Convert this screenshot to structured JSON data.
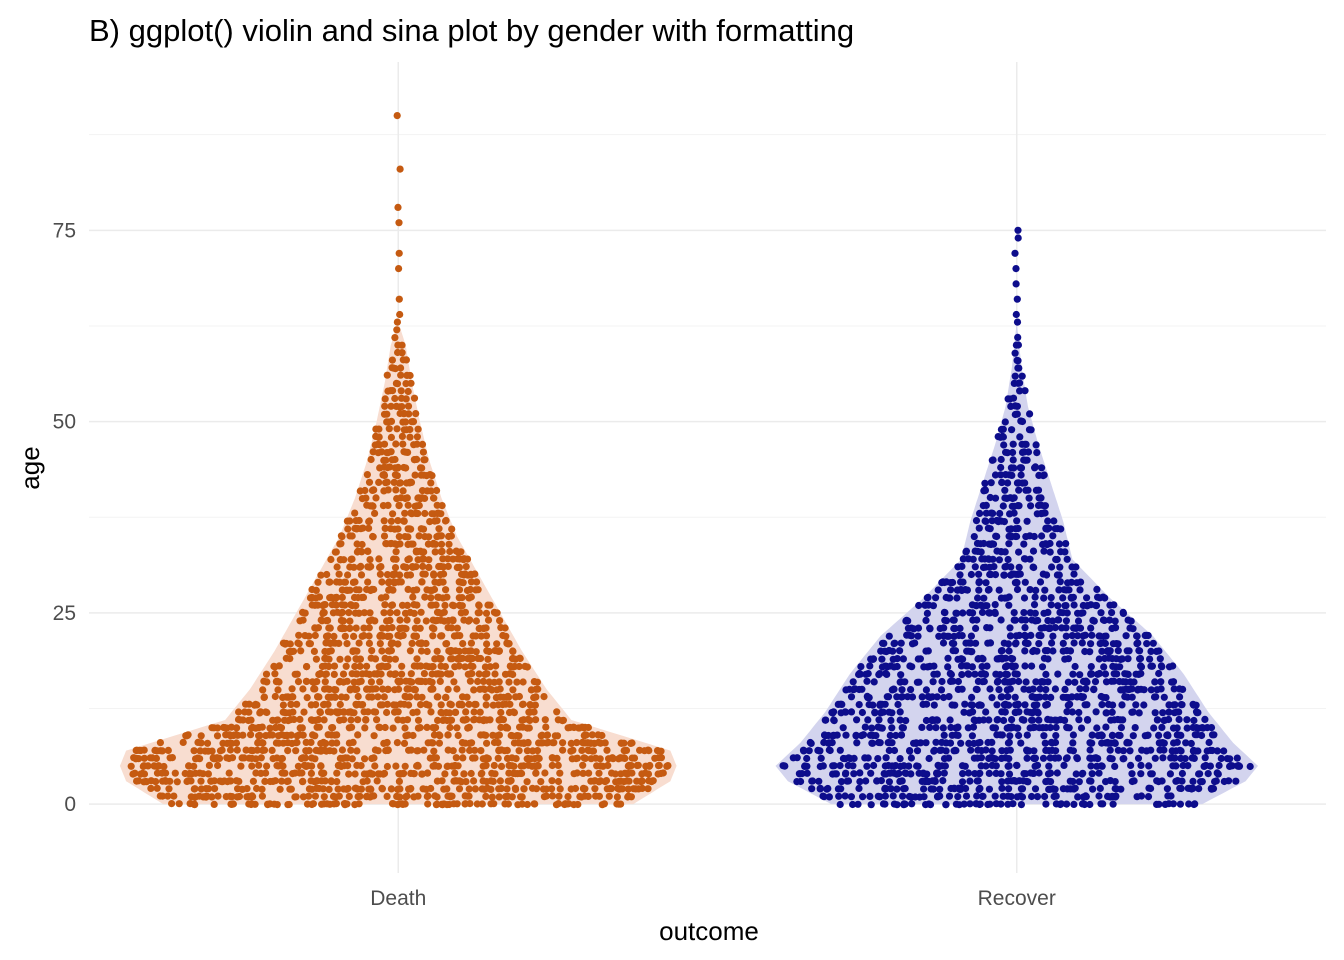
{
  "chart_data": {
    "type": "violin",
    "subtype": "violin with sina points",
    "title": "B) ggplot() violin and sina plot by gender with formatting",
    "xlabel": "outcome",
    "ylabel": "age",
    "categories": [
      "Death",
      "Recover"
    ],
    "ylim": [
      -9,
      97
    ],
    "yticks": [
      0,
      25,
      50,
      75
    ],
    "grid": true,
    "legend": "none",
    "series": [
      {
        "name": "Death",
        "point_color": "#c55a11",
        "violin_fill": "#f8ddd0",
        "n_points": 2100,
        "max_age": 90,
        "outliers": [
          90,
          83,
          78,
          76,
          72,
          70,
          66,
          64,
          63,
          62
        ],
        "density_profile": [
          {
            "age": 0,
            "width": 0.38
          },
          {
            "age": 3,
            "width": 0.44
          },
          {
            "age": 5,
            "width": 0.45
          },
          {
            "age": 7,
            "width": 0.44
          },
          {
            "age": 9,
            "width": 0.36
          },
          {
            "age": 11,
            "width": 0.28
          },
          {
            "age": 15,
            "width": 0.24
          },
          {
            "age": 20,
            "width": 0.2
          },
          {
            "age": 25,
            "width": 0.165
          },
          {
            "age": 30,
            "width": 0.13
          },
          {
            "age": 35,
            "width": 0.095
          },
          {
            "age": 40,
            "width": 0.07
          },
          {
            "age": 45,
            "width": 0.05
          },
          {
            "age": 50,
            "width": 0.035
          },
          {
            "age": 55,
            "width": 0.022
          },
          {
            "age": 60,
            "width": 0.012
          },
          {
            "age": 63,
            "width": 0.0
          }
        ]
      },
      {
        "name": "Recover",
        "point_color": "#0d0d8c",
        "violin_fill": "#d3d4ee",
        "n_points": 1700,
        "max_age": 75,
        "outliers": [
          75,
          74,
          72,
          70,
          68,
          66,
          64,
          63,
          61,
          60,
          58,
          57,
          55
        ],
        "density_profile": [
          {
            "age": 0,
            "width": 0.3
          },
          {
            "age": 3,
            "width": 0.37
          },
          {
            "age": 5,
            "width": 0.39
          },
          {
            "age": 8,
            "width": 0.35
          },
          {
            "age": 12,
            "width": 0.31
          },
          {
            "age": 17,
            "width": 0.27
          },
          {
            "age": 22,
            "width": 0.22
          },
          {
            "age": 27,
            "width": 0.15
          },
          {
            "age": 32,
            "width": 0.09
          },
          {
            "age": 37,
            "width": 0.075
          },
          {
            "age": 42,
            "width": 0.055
          },
          {
            "age": 47,
            "width": 0.035
          },
          {
            "age": 52,
            "width": 0.018
          },
          {
            "age": 57,
            "width": 0.008
          },
          {
            "age": 63,
            "width": 0.0
          }
        ]
      }
    ]
  }
}
